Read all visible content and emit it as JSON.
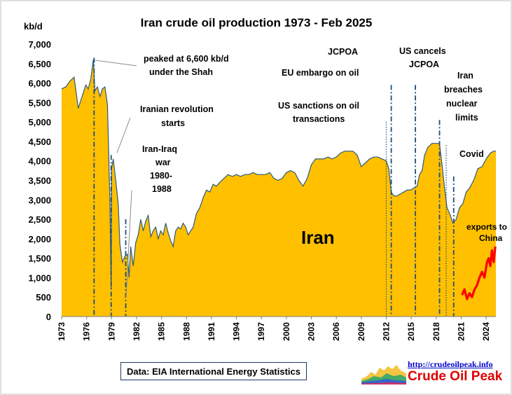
{
  "chart_data": {
    "type": "area",
    "title": "Iran crude oil production 1973 - Feb 2025",
    "ylabel": "kb/d",
    "ylim": [
      0,
      7000
    ],
    "xlim": [
      1973,
      2025.17
    ],
    "yticks": [
      0,
      500,
      1000,
      1500,
      2000,
      2500,
      3000,
      3500,
      4000,
      4500,
      5000,
      5500,
      6000,
      6500,
      7000
    ],
    "ytick_labels": [
      "0",
      "500",
      "1,000",
      "1,500",
      "2,000",
      "2,500",
      "3,000",
      "3,500",
      "4,000",
      "4,500",
      "5,000",
      "5,500",
      "6,000",
      "6,500",
      "7,000"
    ],
    "xticks": [
      1973,
      1976,
      1979,
      1982,
      1985,
      1988,
      1991,
      1994,
      1997,
      2000,
      2003,
      2006,
      2009,
      2012,
      2015,
      2018,
      2021,
      2024
    ],
    "xtick_labels": [
      "1973",
      "1976",
      "1979",
      "1982",
      "1985",
      "1988",
      "1991",
      "1994",
      "1997",
      "2000",
      "2003",
      "2006",
      "2009",
      "2012",
      "2015",
      "2018",
      "2021",
      "2024"
    ],
    "grid": false,
    "series": [
      {
        "name": "Iran",
        "color": "#FFC000",
        "line_color": "#2e5b7a",
        "x": [
          1973.0,
          1973.5,
          1974.0,
          1974.5,
          1975.0,
          1975.3,
          1975.6,
          1975.9,
          1976.2,
          1976.5,
          1976.8,
          1977.0,
          1977.3,
          1977.6,
          1977.9,
          1978.2,
          1978.5,
          1978.8,
          1978.95,
          1979.0,
          1979.2,
          1979.5,
          1979.8,
          1980.0,
          1980.3,
          1980.6,
          1980.9,
          1981.1,
          1981.3,
          1981.6,
          1981.9,
          1982.2,
          1982.5,
          1982.8,
          1983.1,
          1983.4,
          1983.7,
          1984.0,
          1984.3,
          1984.6,
          1984.9,
          1985.2,
          1985.5,
          1985.8,
          1986.1,
          1986.4,
          1986.7,
          1987.0,
          1987.3,
          1987.6,
          1987.9,
          1988.2,
          1988.5,
          1988.8,
          1989.2,
          1989.6,
          1990.0,
          1990.4,
          1990.8,
          1991.2,
          1991.6,
          1992.0,
          1992.5,
          1993.0,
          1993.5,
          1994.0,
          1994.5,
          1995.0,
          1995.5,
          1996.0,
          1996.5,
          1997.0,
          1997.5,
          1998.0,
          1998.5,
          1999.0,
          1999.5,
          2000.0,
          2000.5,
          2001.0,
          2001.5,
          2002.0,
          2002.5,
          2003.0,
          2003.5,
          2004.0,
          2004.5,
          2005.0,
          2005.5,
          2006.0,
          2006.5,
          2007.0,
          2007.5,
          2008.0,
          2008.5,
          2009.0,
          2009.5,
          2010.0,
          2010.5,
          2011.0,
          2011.5,
          2012.0,
          2012.3,
          2012.6,
          2012.9,
          2013.3,
          2013.7,
          2014.1,
          2014.5,
          2014.9,
          2015.3,
          2015.7,
          2016.0,
          2016.3,
          2016.6,
          2017.0,
          2017.5,
          2018.0,
          2018.4,
          2018.7,
          2019.0,
          2019.3,
          2019.7,
          2020.0,
          2020.4,
          2020.8,
          2021.2,
          2021.6,
          2022.0,
          2022.5,
          2023.0,
          2023.5,
          2024.0,
          2024.5,
          2024.9,
          2025.17
        ],
        "values": [
          5850,
          5900,
          6050,
          6150,
          5350,
          5550,
          5750,
          5950,
          5850,
          6100,
          6600,
          5800,
          5900,
          5650,
          5850,
          5900,
          5450,
          3000,
          700,
          3800,
          4050,
          3500,
          2900,
          1850,
          1400,
          1550,
          1600,
          1000,
          1800,
          1300,
          1900,
          2100,
          2500,
          2200,
          2450,
          2600,
          2050,
          2200,
          2300,
          2000,
          2200,
          2100,
          2400,
          2150,
          1950,
          1800,
          2200,
          2300,
          2250,
          2400,
          2300,
          2100,
          2200,
          2300,
          2650,
          2800,
          3050,
          3250,
          3200,
          3400,
          3350,
          3450,
          3550,
          3650,
          3600,
          3650,
          3600,
          3650,
          3650,
          3700,
          3650,
          3650,
          3650,
          3700,
          3550,
          3500,
          3550,
          3700,
          3750,
          3700,
          3500,
          3350,
          3550,
          3900,
          4050,
          4050,
          4050,
          4100,
          4050,
          4100,
          4200,
          4250,
          4250,
          4250,
          4150,
          3850,
          3950,
          4050,
          4100,
          4100,
          4050,
          4000,
          3800,
          3200,
          3100,
          3100,
          3150,
          3200,
          3250,
          3250,
          3300,
          3350,
          3650,
          3750,
          4150,
          4350,
          4450,
          4450,
          4450,
          3900,
          3300,
          2800,
          2600,
          2400,
          2500,
          2800,
          2900,
          3200,
          3300,
          3500,
          3800,
          3850,
          4050,
          4200,
          4250,
          4250
        ]
      },
      {
        "name": "exports to China",
        "color": "#ff0000",
        "x": [
          2021.1,
          2021.4,
          2021.7,
          2022.0,
          2022.3,
          2022.6,
          2022.9,
          2023.2,
          2023.5,
          2023.8,
          2024.1,
          2024.3,
          2024.5,
          2024.7,
          2024.9,
          2025.1
        ],
        "values": [
          550,
          700,
          450,
          600,
          500,
          700,
          800,
          1000,
          1150,
          1000,
          1400,
          1500,
          1300,
          1700,
          1400,
          1800
        ]
      }
    ],
    "event_lines": [
      {
        "x": 1976.9,
        "y": 6650,
        "style": "dashdot"
      },
      {
        "x": 1978.95,
        "y": 4150,
        "style": "dashdot"
      },
      {
        "x": 1980.7,
        "y": 2500,
        "style": "dashdot"
      },
      {
        "x": 2012.0,
        "y": 5000,
        "style": "dot"
      },
      {
        "x": 2012.6,
        "y": 5950,
        "style": "dashdot"
      },
      {
        "x": 2015.5,
        "y": 5950,
        "style": "dashdot"
      },
      {
        "x": 2018.4,
        "y": 5050,
        "style": "dashdot"
      },
      {
        "x": 2019.2,
        "y": 4400,
        "style": "dot"
      },
      {
        "x": 2020.1,
        "y": 3600,
        "style": "dashdot"
      }
    ],
    "annotations": {
      "shah": [
        "peaked at 6,600 kb/d",
        "under the Shah"
      ],
      "revolution": [
        "Iranian revolution",
        "starts"
      ],
      "war": [
        "Iran-Iraq",
        "war",
        "1980-",
        "1988"
      ],
      "jcpoa": [
        "JCPOA"
      ],
      "eu": [
        "EU embargo on oil"
      ],
      "us_sanctions": [
        "US sanctions on oil",
        "transactions"
      ],
      "us_cancels": [
        "US cancels",
        "JCPOA"
      ],
      "breaches": [
        "Iran",
        "breaches",
        "nuclear",
        "limits"
      ],
      "covid": [
        "Covid"
      ],
      "china": [
        "exports to",
        "China"
      ],
      "series_label": "Iran"
    }
  },
  "source": "Data: EIA International Energy Statistics",
  "logo": {
    "url": "http://crudeoilpeak.info",
    "name": "Crude Oil Peak"
  }
}
